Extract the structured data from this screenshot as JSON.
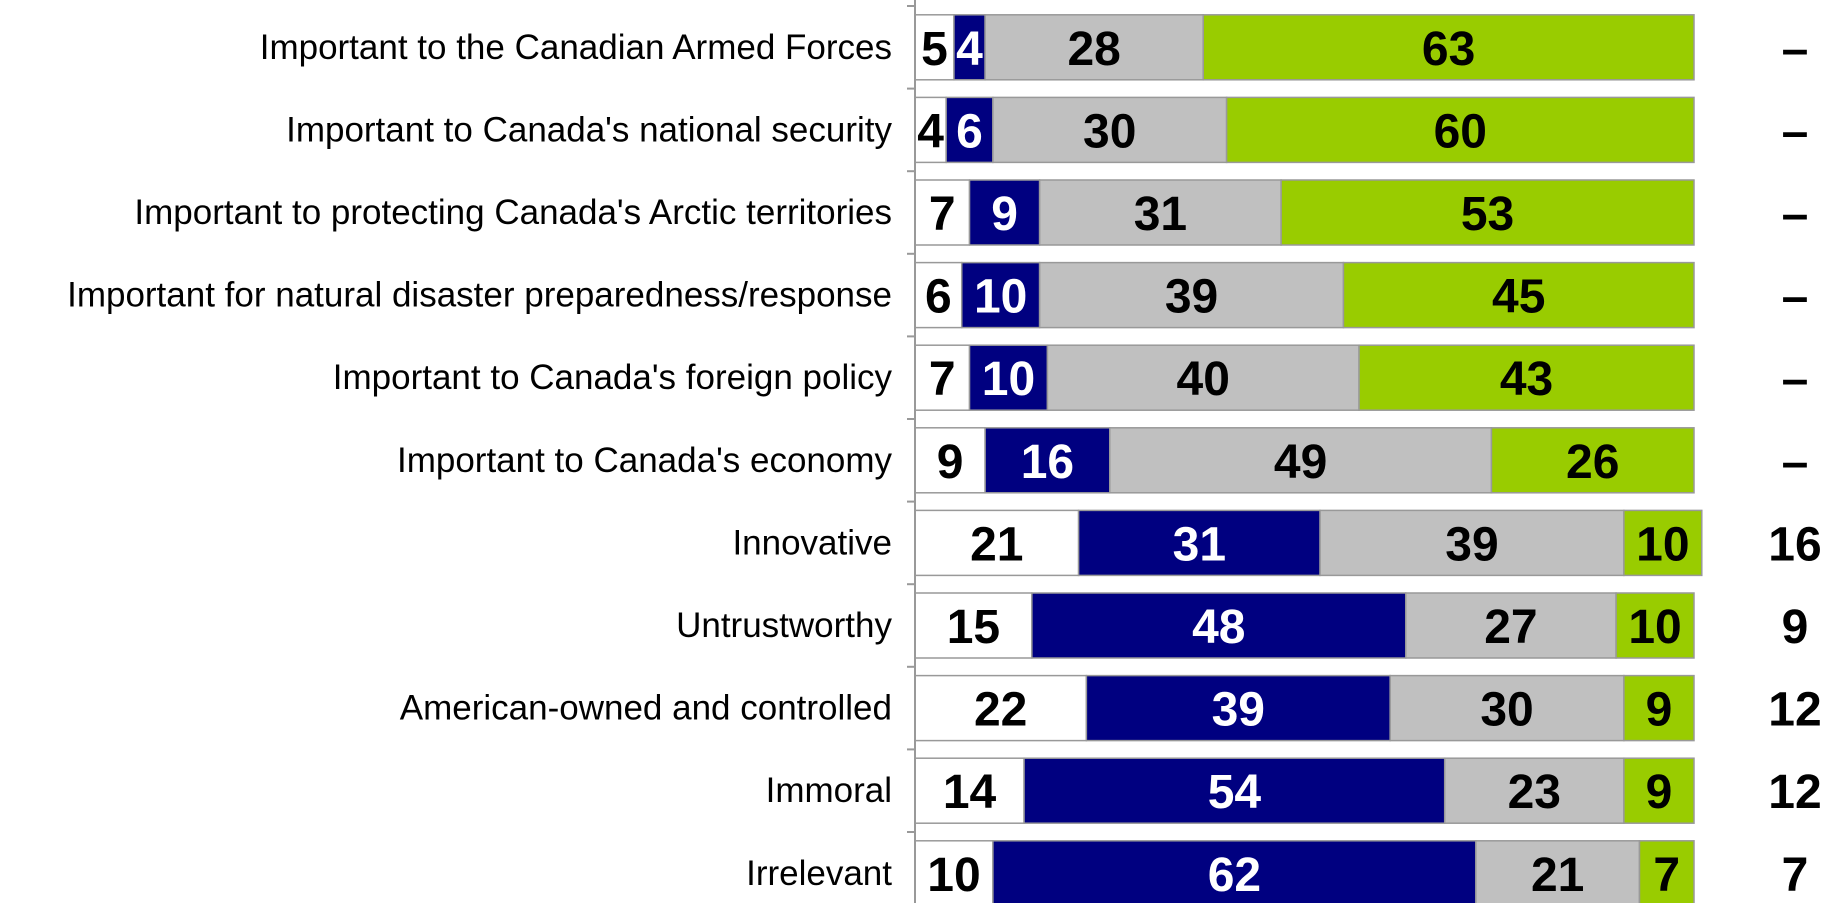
{
  "chart_data": {
    "type": "stacked-bar",
    "categories": [
      "Important to the Canadian Armed Forces",
      "Important to Canada's national security",
      "Important to protecting Canada's Arctic territories",
      "Important for natural disaster preparedness/response",
      "Important to Canada's foreign policy",
      "Important to Canada's economy",
      "Innovative",
      "Untrustworthy",
      "American-owned and controlled",
      "Immoral",
      "Irrelevant"
    ],
    "series": [
      {
        "color": "#ffffff",
        "text_color": "#000000",
        "values": [
          5,
          4,
          7,
          6,
          7,
          9,
          21,
          15,
          22,
          14,
          10
        ]
      },
      {
        "color": "#000080",
        "text_color": "#ffffff",
        "values": [
          4,
          6,
          9,
          10,
          10,
          16,
          31,
          48,
          39,
          54,
          62
        ]
      },
      {
        "color": "#c0c0c0",
        "text_color": "#000000",
        "values": [
          28,
          30,
          31,
          39,
          40,
          49,
          39,
          27,
          30,
          23,
          21
        ]
      },
      {
        "color": "#99cc00",
        "text_color": "#000000",
        "values": [
          63,
          60,
          53,
          45,
          43,
          26,
          10,
          10,
          9,
          9,
          7
        ]
      }
    ],
    "xlim": [
      0,
      100
    ],
    "right_column": [
      "–",
      "–",
      "–",
      "–",
      "–",
      "–",
      16,
      9,
      12,
      12,
      7
    ]
  }
}
